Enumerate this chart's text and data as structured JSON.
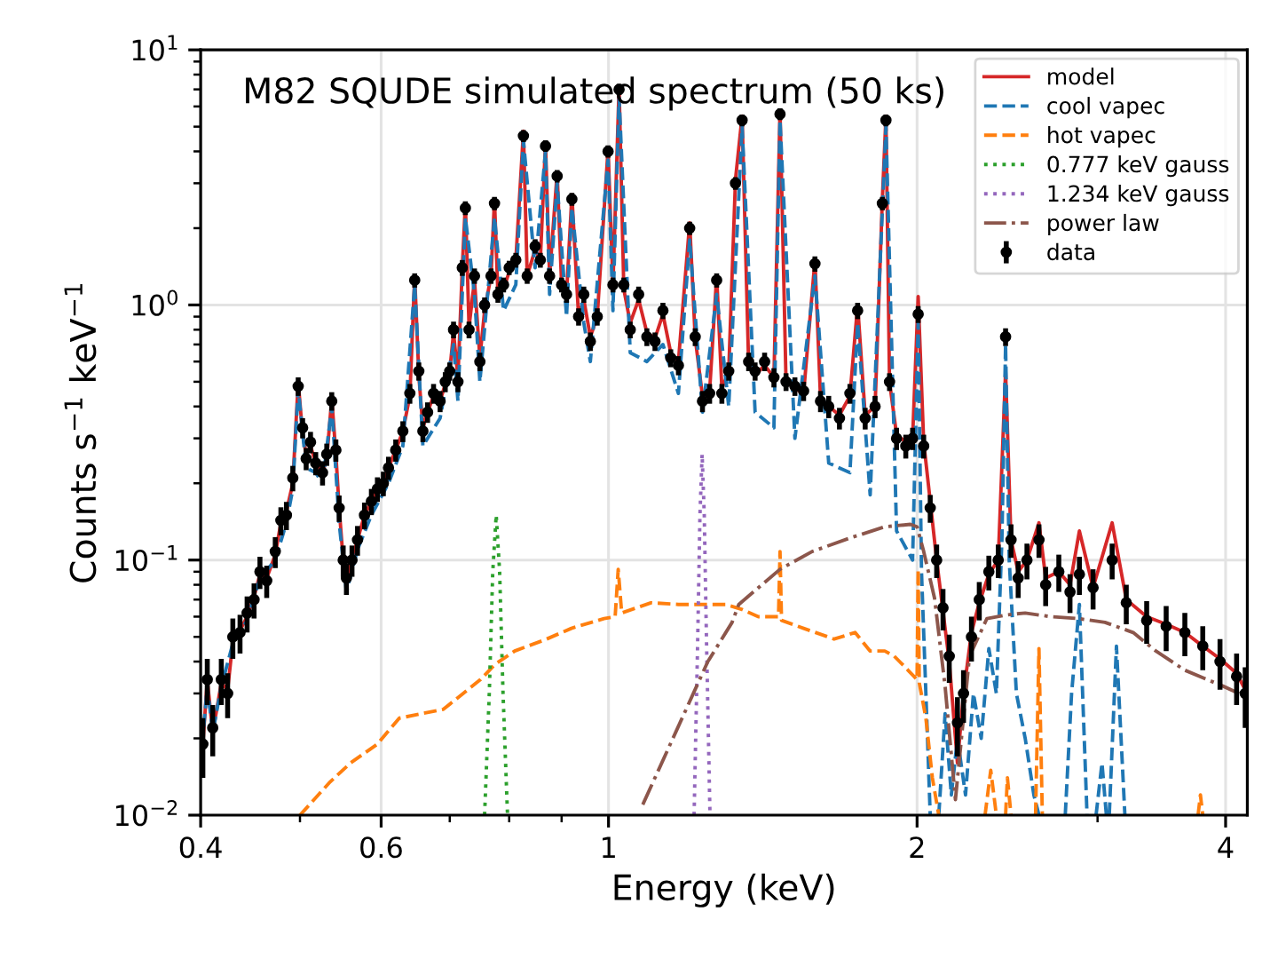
{
  "chart_data": {
    "type": "line",
    "title": "M82 SQUDE simulated spectrum (50 ks)",
    "xlabel": "Energy (keV)",
    "ylabel": "Counts s$^{−1}$ keV$^{−1}$",
    "log": "xy",
    "grid": true,
    "legend": "top right",
    "xlim": [
      0.4,
      4.2
    ],
    "ylim": [
      0.01,
      10
    ],
    "xticks": [
      0.4,
      {
        "value": 0.5,
        "label": null
      },
      0.6,
      {
        "value": 0.7,
        "label": null
      },
      {
        "value": 0.8,
        "label": null
      },
      {
        "value": 0.9,
        "label": null
      },
      1,
      2,
      {
        "value": 3,
        "label": null
      },
      4
    ],
    "yticks": [
      {
        "value": 0.01,
        "label": "10$^{−2}$"
      },
      {
        "value": 0.02,
        "label": null
      },
      {
        "value": 0.03,
        "label": null
      },
      {
        "value": 0.04,
        "label": null
      },
      {
        "value": 0.05,
        "label": null
      },
      {
        "value": 0.06,
        "label": null
      },
      {
        "value": 0.07,
        "label": null
      },
      {
        "value": 0.08,
        "label": null
      },
      {
        "value": 0.09,
        "label": null
      },
      {
        "value": 0.1,
        "label": "10$^{−1}$"
      },
      {
        "value": 0.2,
        "label": null
      },
      {
        "value": 0.3,
        "label": null
      },
      {
        "value": 0.4,
        "label": null
      },
      {
        "value": 0.5,
        "label": null
      },
      {
        "value": 0.6,
        "label": null
      },
      {
        "value": 0.7,
        "label": null
      },
      {
        "value": 0.8,
        "label": null
      },
      {
        "value": 0.9,
        "label": null
      },
      {
        "value": 1,
        "label": "10$^{0}$"
      },
      {
        "value": 2,
        "label": null
      },
      {
        "value": 3,
        "label": null
      },
      {
        "value": 4,
        "label": null
      },
      {
        "value": 5,
        "label": null
      },
      {
        "value": 6,
        "label": null
      },
      {
        "value": 7,
        "label": null
      },
      {
        "value": 8,
        "label": null
      },
      {
        "value": 9,
        "label": null
      },
      {
        "value": 10,
        "label": "10$^{1}$"
      }
    ],
    "x": [
      0.402,
      0.406,
      0.411,
      0.419,
      0.425,
      0.43,
      0.437,
      0.444,
      0.451,
      0.457,
      0.464,
      0.473,
      0.479,
      0.485,
      0.492,
      0.498,
      0.503,
      0.507,
      0.512,
      0.518,
      0.526,
      0.531,
      0.537,
      0.542,
      0.546,
      0.551,
      0.555,
      0.562,
      0.569,
      0.578,
      0.587,
      0.595,
      0.603,
      0.61,
      0.62,
      0.63,
      0.64,
      0.647,
      0.653,
      0.659,
      0.666,
      0.675,
      0.685,
      0.693,
      0.7,
      0.706,
      0.713,
      0.72,
      0.725,
      0.731,
      0.74,
      0.749,
      0.757,
      0.768,
      0.774,
      0.78,
      0.79,
      0.8,
      0.812,
      0.826,
      0.833,
      0.848,
      0.858,
      0.868,
      0.876,
      0.891,
      0.9,
      0.91,
      0.921,
      0.935,
      0.946,
      0.96,
      0.975,
      0.999,
      1.01,
      1.024,
      1.035,
      1.05,
      1.07,
      1.09,
      1.11,
      1.13,
      1.15,
      1.17,
      1.2,
      1.215,
      1.235,
      1.255,
      1.275,
      1.29,
      1.31,
      1.33,
      1.35,
      1.37,
      1.39,
      1.42,
      1.45,
      1.47,
      1.49,
      1.52,
      1.55,
      1.59,
      1.61,
      1.64,
      1.68,
      1.72,
      1.75,
      1.78,
      1.82,
      1.85,
      1.865,
      1.88,
      1.91,
      1.95,
      1.98,
      2.005,
      2.03,
      2.06,
      2.09,
      2.12,
      2.15,
      2.19,
      2.22,
      2.26,
      2.3,
      2.35,
      2.4,
      2.44,
      2.47,
      2.51,
      2.56,
      2.63,
      2.67,
      2.75,
      2.82,
      2.88,
      2.97,
      3.1,
      3.2,
      3.35,
      3.5,
      3.65,
      3.8,
      3.95,
      4.1,
      4.18
    ],
    "series": [
      {
        "name": "model",
        "color": "#d62728",
        "line_style": "solid",
        "values": [
          0.019,
          0.034,
          0.021,
          0.033,
          0.031,
          0.048,
          0.053,
          0.06,
          0.072,
          0.088,
          0.085,
          0.105,
          0.14,
          0.155,
          0.2,
          0.5,
          0.31,
          0.26,
          0.28,
          0.24,
          0.22,
          0.25,
          0.43,
          0.26,
          0.16,
          0.1,
          0.083,
          0.1,
          0.12,
          0.15,
          0.17,
          0.19,
          0.2,
          0.23,
          0.27,
          0.32,
          0.44,
          1.3,
          0.53,
          0.33,
          0.38,
          0.44,
          0.42,
          0.49,
          0.55,
          0.78,
          0.52,
          1.4,
          2.5,
          0.82,
          1.25,
          0.62,
          0.95,
          1.3,
          2.6,
          1.1,
          1.15,
          1.35,
          1.5,
          4.8,
          1.3,
          1.65,
          1.5,
          4.3,
          1.3,
          3.3,
          1.2,
          1.1,
          2.7,
          0.9,
          1.05,
          0.75,
          0.9,
          4.1,
          1.2,
          7.2,
          1.15,
          0.85,
          1.05,
          0.78,
          0.74,
          0.92,
          0.65,
          0.6,
          2.1,
          0.74,
          0.44,
          0.46,
          1.3,
          0.47,
          0.55,
          3.1,
          5.5,
          0.58,
          0.53,
          0.58,
          0.52,
          5.8,
          0.5,
          0.47,
          0.45,
          1.5,
          0.43,
          0.4,
          0.37,
          0.44,
          1.0,
          0.37,
          0.4,
          2.6,
          5.5,
          0.5,
          0.31,
          0.29,
          0.3,
          1.08,
          0.29,
          0.17,
          0.1,
          0.063,
          0.04,
          0.016,
          0.03,
          0.052,
          0.068,
          0.088,
          0.1,
          0.55,
          0.12,
          0.09,
          0.1,
          0.14,
          0.085,
          0.09,
          0.08,
          0.13,
          0.078,
          0.14,
          0.07,
          0.06,
          0.056,
          0.052,
          0.046,
          0.041,
          0.036,
          0.031
        ]
      },
      {
        "name": "cool vapec",
        "color": "#1f77b4",
        "line_style": "dashed",
        "x": [
          0.4,
          0.406,
          0.411,
          0.419,
          0.43,
          0.444,
          0.457,
          0.473,
          0.485,
          0.492,
          0.498,
          0.507,
          0.518,
          0.526,
          0.537,
          0.546,
          0.555,
          0.569,
          0.587,
          0.61,
          0.63,
          0.647,
          0.659,
          0.685,
          0.706,
          0.713,
          0.725,
          0.74,
          0.749,
          0.774,
          0.79,
          0.812,
          0.826,
          0.848,
          0.868,
          0.876,
          0.891,
          0.91,
          0.921,
          0.946,
          0.96,
          0.999,
          1.01,
          1.024,
          1.05,
          1.09,
          1.13,
          1.17,
          1.2,
          1.235,
          1.275,
          1.31,
          1.35,
          1.39,
          1.45,
          1.47,
          1.52,
          1.59,
          1.64,
          1.72,
          1.75,
          1.8,
          1.865,
          1.91,
          1.98,
          2.005,
          2.02,
          2.04,
          2.06,
          2.08,
          2.1,
          2.13,
          2.16,
          2.19,
          2.23,
          2.27,
          2.31,
          2.35,
          2.39,
          2.42,
          2.44,
          2.46,
          2.5,
          2.55,
          2.6,
          2.63,
          2.7,
          2.79,
          2.83,
          2.88,
          2.93,
          2.96,
          2.99,
          3.03,
          3.06,
          3.07,
          3.08,
          3.13,
          3.19
        ],
        "values": [
          0.016,
          0.032,
          0.021,
          0.032,
          0.047,
          0.058,
          0.085,
          0.1,
          0.14,
          0.19,
          0.47,
          0.23,
          0.22,
          0.2,
          0.4,
          0.14,
          0.075,
          0.11,
          0.15,
          0.2,
          0.28,
          1.2,
          0.28,
          0.36,
          0.7,
          0.42,
          2.2,
          1.1,
          0.5,
          2.2,
          0.95,
          1.2,
          4.4,
          1.4,
          4.0,
          1.1,
          3.0,
          0.9,
          2.4,
          0.85,
          0.6,
          3.7,
          0.95,
          6.5,
          0.65,
          0.6,
          0.7,
          0.45,
          1.8,
          0.38,
          1.1,
          0.4,
          5.0,
          0.38,
          0.33,
          5.3,
          0.3,
          1.3,
          0.24,
          0.22,
          0.85,
          0.18,
          5.0,
          0.13,
          0.1,
          0.85,
          0.09,
          0.03,
          0.01,
          null,
          0.01,
          0.025,
          0.012,
          0.02,
          0.012,
          0.03,
          0.02,
          0.045,
          0.03,
          0.12,
          0.7,
          0.1,
          0.03,
          0.02,
          0.012,
          0.01,
          null,
          0.01,
          0.03,
          0.067,
          0.01,
          null,
          0.01,
          0.016,
          0.01,
          null,
          0.01,
          0.046,
          0.01
        ]
      },
      {
        "name": "hot vapec",
        "color": "#ff7f0e",
        "line_style": "dashed",
        "x": [
          0.5,
          0.535,
          0.56,
          0.595,
          0.625,
          0.69,
          0.75,
          0.775,
          0.81,
          0.87,
          0.92,
          0.99,
          1.015,
          1.022,
          1.03,
          1.1,
          1.17,
          1.26,
          1.3,
          1.35,
          1.4,
          1.465,
          1.47,
          1.475,
          1.55,
          1.66,
          1.74,
          1.8,
          1.86,
          1.9,
          1.96,
          2.0,
          2.005,
          2.01,
          2.04,
          2.07,
          2.1,
          2.2,
          2.33,
          2.36,
          2.39,
          2.42,
          2.44,
          2.45,
          2.47,
          2.55,
          2.61,
          2.63,
          2.65,
          3.2,
          3.76,
          3.78,
          3.8
        ],
        "values": [
          0.01,
          0.0135,
          0.016,
          0.019,
          0.024,
          0.026,
          0.034,
          0.039,
          0.044,
          0.049,
          0.054,
          0.059,
          0.06,
          0.092,
          0.062,
          0.068,
          0.067,
          0.067,
          0.067,
          0.064,
          0.06,
          0.06,
          0.108,
          0.058,
          0.054,
          0.049,
          0.052,
          0.044,
          0.044,
          0.042,
          0.037,
          0.034,
          0.092,
          0.033,
          0.024,
          0.014,
          0.01,
          null,
          0.01,
          0.015,
          0.01,
          null,
          0.01,
          0.014,
          0.01,
          null,
          0.01,
          0.045,
          0.01,
          null,
          0.01,
          0.012,
          0.01
        ]
      },
      {
        "name": "0.777 keV gauss",
        "color": "#2ca02c",
        "line_style": "dotted",
        "x": [
          0.757,
          0.765,
          0.771,
          0.777,
          0.783,
          0.789,
          0.797
        ],
        "values": [
          0.01,
          0.03,
          0.09,
          0.15,
          0.09,
          0.03,
          0.01
        ]
      },
      {
        "name": "1.234 keV gauss",
        "color": "#9467bd",
        "line_style": "dotted",
        "x": [
          1.212,
          1.222,
          1.228,
          1.234,
          1.24,
          1.246,
          1.256
        ],
        "values": [
          0.01,
          0.05,
          0.15,
          0.26,
          0.15,
          0.05,
          0.01
        ]
      },
      {
        "name": "power law",
        "color": "#8c564b",
        "line_style": "dashdot",
        "x": [
          1.08,
          1.25,
          1.32,
          1.34,
          1.47,
          1.58,
          1.72,
          1.86,
          1.97,
          2.0,
          2.03,
          2.08,
          2.13,
          2.18,
          2.25,
          2.34,
          2.45,
          2.55,
          2.7,
          2.87,
          3.05,
          3.25,
          3.42,
          3.65,
          3.98,
          4.2
        ],
        "values": [
          0.011,
          0.04,
          0.057,
          0.067,
          0.092,
          0.108,
          0.122,
          0.135,
          0.138,
          0.135,
          0.108,
          0.071,
          0.032,
          0.0115,
          0.042,
          0.059,
          0.061,
          0.062,
          0.06,
          0.059,
          0.057,
          0.052,
          0.044,
          0.037,
          0.032,
          0.029
        ]
      },
      {
        "name": "data",
        "type": "scatter",
        "color": "#000000",
        "marker": "circle",
        "values": [
          0.019,
          0.034,
          0.022,
          0.034,
          0.03,
          0.05,
          0.052,
          0.062,
          0.07,
          0.09,
          0.083,
          0.108,
          0.143,
          0.15,
          0.21,
          0.48,
          0.33,
          0.25,
          0.29,
          0.24,
          0.22,
          0.26,
          0.42,
          0.27,
          0.16,
          0.1,
          0.085,
          0.1,
          0.12,
          0.15,
          0.17,
          0.19,
          0.2,
          0.23,
          0.27,
          0.32,
          0.45,
          1.25,
          0.55,
          0.32,
          0.38,
          0.45,
          0.42,
          0.5,
          0.55,
          0.8,
          0.5,
          1.4,
          2.4,
          0.8,
          1.3,
          0.6,
          1.0,
          1.3,
          2.5,
          1.1,
          1.2,
          1.4,
          1.5,
          4.6,
          1.3,
          1.7,
          1.5,
          4.2,
          1.3,
          3.2,
          1.2,
          1.1,
          2.6,
          0.9,
          1.1,
          0.72,
          0.9,
          4.0,
          1.2,
          7.0,
          1.2,
          0.8,
          1.1,
          0.75,
          0.72,
          0.95,
          0.62,
          0.58,
          2.0,
          0.75,
          0.42,
          0.45,
          1.25,
          0.45,
          0.55,
          3.0,
          5.3,
          0.6,
          0.55,
          0.6,
          0.52,
          5.6,
          0.5,
          0.48,
          0.46,
          1.45,
          0.42,
          0.4,
          0.36,
          0.45,
          0.95,
          0.36,
          0.4,
          2.5,
          5.3,
          0.5,
          0.3,
          0.28,
          0.3,
          0.92,
          0.28,
          0.16,
          0.1,
          0.065,
          0.042,
          0.023,
          0.03,
          0.05,
          0.07,
          0.09,
          0.1,
          0.75,
          0.12,
          0.085,
          0.1,
          0.12,
          0.08,
          0.09,
          0.075,
          0.088,
          0.078,
          0.1,
          0.068,
          0.058,
          0.055,
          0.052,
          0.046,
          0.04,
          0.035,
          0.03
        ],
        "errors": [
          0.005,
          0.007,
          0.005,
          0.007,
          0.006,
          0.009,
          0.009,
          0.01,
          0.011,
          0.013,
          0.012,
          0.015,
          0.018,
          0.019,
          0.024,
          0.04,
          0.03,
          0.025,
          0.028,
          0.025,
          0.024,
          0.026,
          0.035,
          0.027,
          0.019,
          0.014,
          0.012,
          0.014,
          0.016,
          0.018,
          0.02,
          0.021,
          0.022,
          0.024,
          0.027,
          0.03,
          0.04,
          0.08,
          0.045,
          0.03,
          0.035,
          0.04,
          0.04,
          0.045,
          0.045,
          0.06,
          0.045,
          0.1,
          0.15,
          0.06,
          0.09,
          0.05,
          0.07,
          0.09,
          0.15,
          0.08,
          0.08,
          0.09,
          0.1,
          0.25,
          0.09,
          0.11,
          0.1,
          0.22,
          0.09,
          0.18,
          0.08,
          0.08,
          0.15,
          0.07,
          0.08,
          0.06,
          0.07,
          0.22,
          0.08,
          0.35,
          0.08,
          0.06,
          0.08,
          0.06,
          0.06,
          0.07,
          0.05,
          0.05,
          0.12,
          0.06,
          0.04,
          0.04,
          0.08,
          0.04,
          0.045,
          0.17,
          0.28,
          0.05,
          0.045,
          0.05,
          0.045,
          0.3,
          0.04,
          0.04,
          0.04,
          0.1,
          0.04,
          0.04,
          0.035,
          0.04,
          0.07,
          0.035,
          0.04,
          0.15,
          0.28,
          0.04,
          0.03,
          0.03,
          0.03,
          0.07,
          0.03,
          0.02,
          0.015,
          0.012,
          0.009,
          0.006,
          0.007,
          0.01,
          0.012,
          0.014,
          0.015,
          0.06,
          0.018,
          0.014,
          0.016,
          0.018,
          0.014,
          0.015,
          0.013,
          0.015,
          0.014,
          0.016,
          0.012,
          0.011,
          0.011,
          0.01,
          0.009,
          0.009,
          0.008,
          0.008
        ]
      }
    ]
  }
}
